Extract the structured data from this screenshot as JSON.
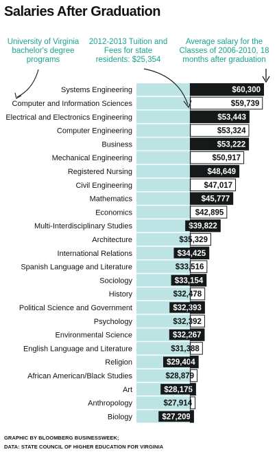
{
  "title": "Salaries After Graduation",
  "notes": {
    "programs": "University of Virginia bachelor's degree programs",
    "tuition": "2012-2013 Tuition and Fees for state residents: $25,354",
    "salary": "Average salary for the Classes of 2006-2010, 18 months after graduation"
  },
  "colors": {
    "dark_bar": "#15191a",
    "tuition_fill": "#bde4e4",
    "white_bar": "#ffffff",
    "note_text": "#1aa38c"
  },
  "chart_data": {
    "type": "bar",
    "orientation": "horizontal",
    "tuition_reference": 25354,
    "categories": [
      "Systems Engineering",
      "Computer and Information Sciences",
      "Electrical and Electronics Engineering",
      "Computer Engineering",
      "Business",
      "Mechanical Engineering",
      "Registered Nursing",
      "Civil Engineering",
      "Mathematics",
      "Economics",
      "Multi-Interdisciplinary Studies",
      "Architecture",
      "International Relations",
      "Spanish Language and Literature",
      "Sociology",
      "History",
      "Political Science and Government",
      "Psychology",
      "Environmental Science",
      "English Language and Literature",
      "Religion",
      "African American/Black Studies",
      "Art",
      "Anthropology",
      "Biology"
    ],
    "values": [
      60300,
      59739,
      53443,
      53324,
      53222,
      50917,
      48649,
      47017,
      45777,
      42895,
      39822,
      35329,
      34425,
      33516,
      33154,
      32478,
      32393,
      32392,
      32267,
      31388,
      29404,
      28879,
      28175,
      27914,
      27209
    ],
    "labels": [
      "$60,300",
      "$59,739",
      "$53,443",
      "$53,324",
      "$53,222",
      "$50,917",
      "$48,649",
      "$47,017",
      "$45,777",
      "$42,895",
      "$39,822",
      "$35,329",
      "$34,425",
      "$33,516",
      "$33,154",
      "$32,478",
      "$32,393",
      "$32,392",
      "$32,267",
      "$31,388",
      "$29,404",
      "$28,879",
      "$28,175",
      "$27,914",
      "$27,209"
    ],
    "bar_styles": [
      "dark",
      "white",
      "dark",
      "white",
      "dark",
      "white",
      "dark",
      "white",
      "dark",
      "white",
      "dark",
      "white",
      "dark",
      "white",
      "dark",
      "white",
      "dark",
      "white",
      "dark",
      "white",
      "dark",
      "white",
      "dark",
      "white",
      "dark"
    ]
  },
  "footer": {
    "line1": "GRAPHIC BY BLOOMBERG BUSINESSWEEK;",
    "line2": "DATA: STATE COUNCIL OF HIGHER EDUCATION FOR VIRGINIA"
  }
}
